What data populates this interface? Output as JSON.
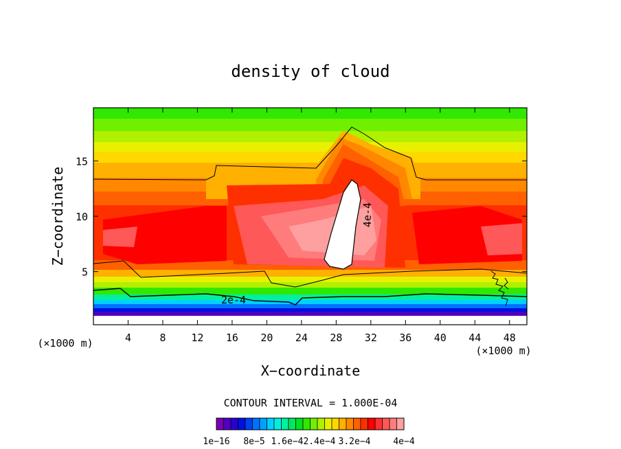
{
  "chart_data": {
    "type": "heatmap",
    "title": "density of cloud",
    "xlabel": "X−coordinate",
    "ylabel": "Z−coordinate",
    "x_unit_label_left": "(×1000 m)",
    "x_unit_label_right": "(×1000 m)",
    "xlim": [
      0,
      50
    ],
    "ylim": [
      0.2,
      19.8
    ],
    "x_ticks": [
      4,
      8,
      12,
      16,
      20,
      24,
      28,
      32,
      36,
      40,
      44,
      48
    ],
    "y_ticks": [
      5,
      10,
      15
    ],
    "contour_labels": [
      "2e-4",
      "4e-4"
    ],
    "contour_interval_text": "CONTOUR INTERVAL = 1.000E-04",
    "colorbar": {
      "tick_labels": [
        "1e−16",
        "8e−5",
        "1.6e−4",
        "2.4e−4",
        "3.2e−4",
        "4e−4"
      ],
      "colors": [
        "#7a00b8",
        "#5000c0",
        "#2a00d0",
        "#0010e0",
        "#0040f0",
        "#0070ff",
        "#00a0ff",
        "#00d0ff",
        "#00f0e0",
        "#00f0a0",
        "#00e860",
        "#00e020",
        "#30e800",
        "#70f000",
        "#b0f000",
        "#e8f000",
        "#ffd800",
        "#ffb000",
        "#ff8800",
        "#ff6000",
        "#ff3000",
        "#ff0000",
        "#ff3030",
        "#ff5858",
        "#ff7c7c",
        "#ffa0a0"
      ]
    }
  }
}
